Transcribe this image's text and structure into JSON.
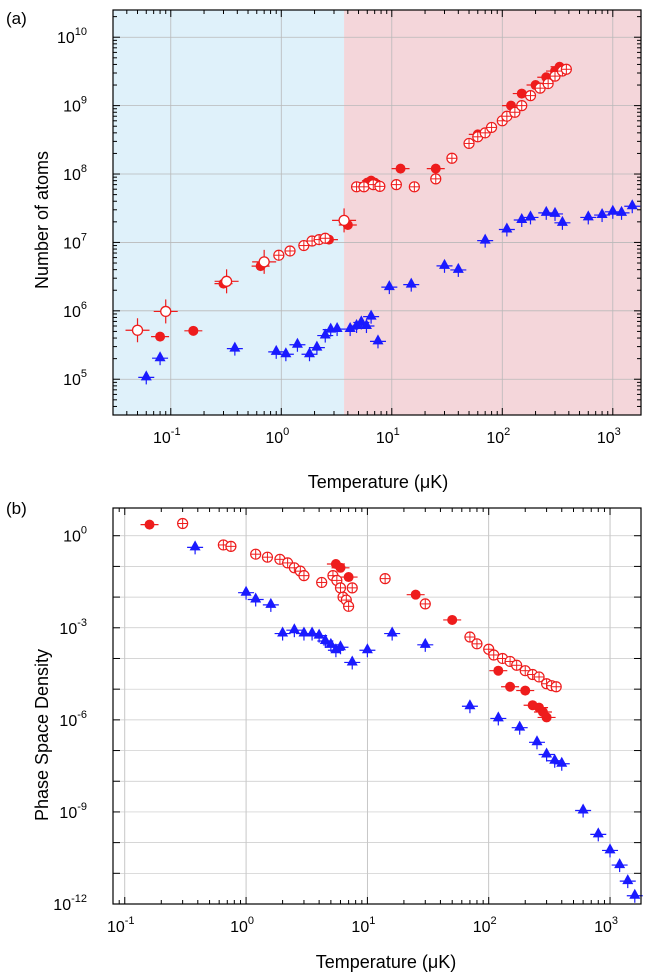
{
  "chart_data": [
    {
      "panel_label": "(a)",
      "type": "scatter",
      "xlabel": "Temperature (μK)",
      "ylabel": "Number of atoms",
      "xscale": "log",
      "yscale": "log",
      "xlim": [
        0.03,
        1800
      ],
      "ylim": [
        30000,
        25000000000
      ],
      "x_tick_labels": [
        "10",
        "10",
        "10",
        "10",
        "10"
      ],
      "x_tick_exponents": [
        "-1",
        "0",
        "1",
        "2",
        "3"
      ],
      "x_tick_values": [
        0.1,
        1,
        10,
        100,
        1000
      ],
      "y_tick_labels": [
        "10",
        "10",
        "10",
        "10",
        "10",
        "10"
      ],
      "y_tick_exponents": [
        "5",
        "6",
        "7",
        "8",
        "9",
        "10"
      ],
      "y_tick_values": [
        100000,
        1000000,
        10000000,
        100000000,
        1000000000,
        10000000000
      ],
      "grid": true,
      "background_regions": [
        {
          "x": [
            0.03,
            3.7
          ],
          "color": "#dff1fa"
        },
        {
          "x": [
            3.7,
            1800
          ],
          "color": "#f4d6da"
        }
      ],
      "series": [
        {
          "marker": "filled-circle",
          "color": "#ee1c1c",
          "points": [
            [
              0.08,
              420000
            ],
            [
              0.16,
              510000
            ],
            [
              0.3,
              2500000
            ],
            [
              0.65,
              4500000
            ],
            [
              2.7,
              11000000
            ],
            [
              4,
              18000000
            ],
            [
              6,
              75000000
            ],
            [
              6.5,
              80000000
            ],
            [
              7,
              75000000
            ],
            [
              12,
              120000000
            ],
            [
              25,
              120000000
            ],
            [
              60,
              380000000
            ],
            [
              120,
              1000000000
            ],
            [
              150,
              1500000000
            ],
            [
              200,
              2000000000
            ],
            [
              250,
              2600000000
            ],
            [
              300,
              3200000000
            ],
            [
              330,
              3700000000
            ]
          ]
        },
        {
          "marker": "open-circle",
          "color": "#ee1c1c",
          "points": [
            [
              0.05,
              520000
            ],
            [
              0.09,
              980000
            ],
            [
              0.32,
              2700000
            ],
            [
              0.7,
              5200000
            ],
            [
              3.7,
              21000000
            ]
          ]
        },
        {
          "marker": "crossed-circle",
          "color": "#ee1c1c",
          "points": [
            [
              0.95,
              6500000
            ],
            [
              1.2,
              7500000
            ],
            [
              1.6,
              9000000
            ],
            [
              1.9,
              10500000
            ],
            [
              2.2,
              11000000
            ],
            [
              2.5,
              11500000
            ],
            [
              4.8,
              65000000
            ],
            [
              5.6,
              65000000
            ],
            [
              6.8,
              70000000
            ],
            [
              7.8,
              66000000
            ],
            [
              11,
              70000000
            ],
            [
              16,
              65000000
            ],
            [
              25,
              85000000
            ],
            [
              35,
              170000000
            ],
            [
              50,
              280000000
            ],
            [
              60,
              350000000
            ],
            [
              70,
              400000000
            ],
            [
              80,
              480000000
            ],
            [
              100,
              600000000
            ],
            [
              110,
              700000000
            ],
            [
              130,
              800000000
            ],
            [
              150,
              1000000000
            ],
            [
              180,
              1400000000
            ],
            [
              220,
              1800000000
            ],
            [
              260,
              2100000000
            ],
            [
              300,
              2700000000
            ],
            [
              350,
              3200000000
            ],
            [
              380,
              3400000000
            ]
          ]
        },
        {
          "marker": "triangle-up",
          "color": "#1a1aff",
          "points": [
            [
              0.06,
              110000
            ],
            [
              0.08,
              210000
            ],
            [
              0.38,
              290000
            ],
            [
              0.9,
              260000
            ],
            [
              1.1,
              240000
            ],
            [
              1.4,
              330000
            ],
            [
              1.8,
              240000
            ],
            [
              2.1,
              300000
            ],
            [
              2.5,
              450000
            ],
            [
              2.8,
              550000
            ],
            [
              3.2,
              560000
            ],
            [
              4.2,
              560000
            ],
            [
              4.8,
              620000
            ],
            [
              5.3,
              700000
            ],
            [
              5.9,
              620000
            ],
            [
              6.5,
              850000
            ],
            [
              7.5,
              370000
            ],
            [
              9.5,
              2300000
            ],
            [
              15,
              2500000
            ],
            [
              30,
              4700000
            ],
            [
              40,
              4100000
            ],
            [
              70,
              11000000
            ],
            [
              110,
              16000000
            ],
            [
              150,
              22000000
            ],
            [
              180,
              24000000
            ],
            [
              250,
              28000000
            ],
            [
              300,
              27000000
            ],
            [
              350,
              20000000
            ],
            [
              600,
              24000000
            ],
            [
              800,
              26000000
            ],
            [
              1000,
              29000000
            ],
            [
              1200,
              28000000
            ],
            [
              1500,
              35000000
            ]
          ]
        }
      ]
    },
    {
      "panel_label": "(b)",
      "type": "scatter",
      "xlabel": "Temperature (μK)",
      "ylabel": "Phase Space Density",
      "xscale": "log",
      "yscale": "log",
      "xlim": [
        0.08,
        1800
      ],
      "ylim": [
        1e-12,
        8
      ],
      "x_tick_labels": [
        "10",
        "10",
        "10",
        "10",
        "10"
      ],
      "x_tick_exponents": [
        "-1",
        "0",
        "1",
        "2",
        "3"
      ],
      "x_tick_values": [
        0.1,
        1,
        10,
        100,
        1000
      ],
      "y_tick_labels": [
        "10",
        "10",
        "10",
        "10",
        "10"
      ],
      "y_tick_exponents": [
        "0",
        "-3",
        "-6",
        "-9",
        "-12"
      ],
      "y_tick_values": [
        1,
        0.001,
        1e-06,
        1e-09,
        1e-12
      ],
      "grid": true,
      "series": [
        {
          "marker": "filled-circle",
          "color": "#ee1c1c",
          "points": [
            [
              0.16,
              2.3
            ],
            [
              5.5,
              0.12
            ],
            [
              6,
              0.09
            ],
            [
              7,
              0.045
            ],
            [
              25,
              0.012
            ],
            [
              50,
              0.0018
            ],
            [
              120,
              4e-05
            ],
            [
              150,
              1.2e-05
            ],
            [
              200,
              9e-06
            ],
            [
              230,
              3e-06
            ],
            [
              260,
              2.5e-06
            ],
            [
              280,
              1.8e-06
            ],
            [
              300,
              1.2e-06
            ]
          ]
        },
        {
          "marker": "crossed-circle",
          "color": "#ee1c1c",
          "points": [
            [
              0.3,
              2.5
            ],
            [
              0.65,
              0.5
            ],
            [
              0.75,
              0.45
            ],
            [
              1.2,
              0.25
            ],
            [
              1.5,
              0.2
            ],
            [
              1.9,
              0.17
            ],
            [
              2.2,
              0.13
            ],
            [
              2.5,
              0.09
            ],
            [
              2.8,
              0.07
            ],
            [
              3,
              0.05
            ],
            [
              4.2,
              0.03
            ],
            [
              5.2,
              0.05
            ],
            [
              5.6,
              0.035
            ],
            [
              6,
              0.02
            ],
            [
              6.3,
              0.01
            ],
            [
              6.7,
              0.008
            ],
            [
              7,
              0.005
            ],
            [
              7.5,
              0.02
            ],
            [
              14,
              0.04
            ],
            [
              30,
              0.006
            ],
            [
              70,
              0.0005
            ],
            [
              80,
              0.0003
            ],
            [
              100,
              0.0002
            ],
            [
              110,
              0.00013
            ],
            [
              130,
              0.0001
            ],
            [
              150,
              8e-05
            ],
            [
              170,
              6e-05
            ],
            [
              200,
              4e-05
            ],
            [
              230,
              3e-05
            ],
            [
              260,
              2.5e-05
            ],
            [
              300,
              1.5e-05
            ],
            [
              330,
              1.3e-05
            ],
            [
              360,
              1.2e-05
            ]
          ]
        },
        {
          "marker": "triangle-up",
          "color": "#1a1aff",
          "points": [
            [
              0.38,
              0.45
            ],
            [
              1,
              0.015
            ],
            [
              1.2,
              0.009
            ],
            [
              1.6,
              0.006
            ],
            [
              2,
              0.0007
            ],
            [
              2.5,
              0.0009
            ],
            [
              3,
              0.0007
            ],
            [
              3.5,
              0.0007
            ],
            [
              4,
              0.0006
            ],
            [
              4.5,
              0.0004
            ],
            [
              5,
              0.0003
            ],
            [
              5.5,
              0.0002
            ],
            [
              6,
              0.00025
            ],
            [
              7.5,
              8e-05
            ],
            [
              10,
              0.0002
            ],
            [
              16,
              0.0007
            ],
            [
              30,
              0.0003
            ],
            [
              70,
              3e-06
            ],
            [
              120,
              1.2e-06
            ],
            [
              180,
              6e-07
            ],
            [
              250,
              2e-07
            ],
            [
              300,
              8e-08
            ],
            [
              350,
              5e-08
            ],
            [
              400,
              4e-08
            ],
            [
              600,
              1.2e-09
            ],
            [
              800,
              2e-10
            ],
            [
              1000,
              6e-11
            ],
            [
              1200,
              2e-11
            ],
            [
              1400,
              6e-12
            ],
            [
              1600,
              2e-12
            ]
          ]
        }
      ]
    }
  ]
}
